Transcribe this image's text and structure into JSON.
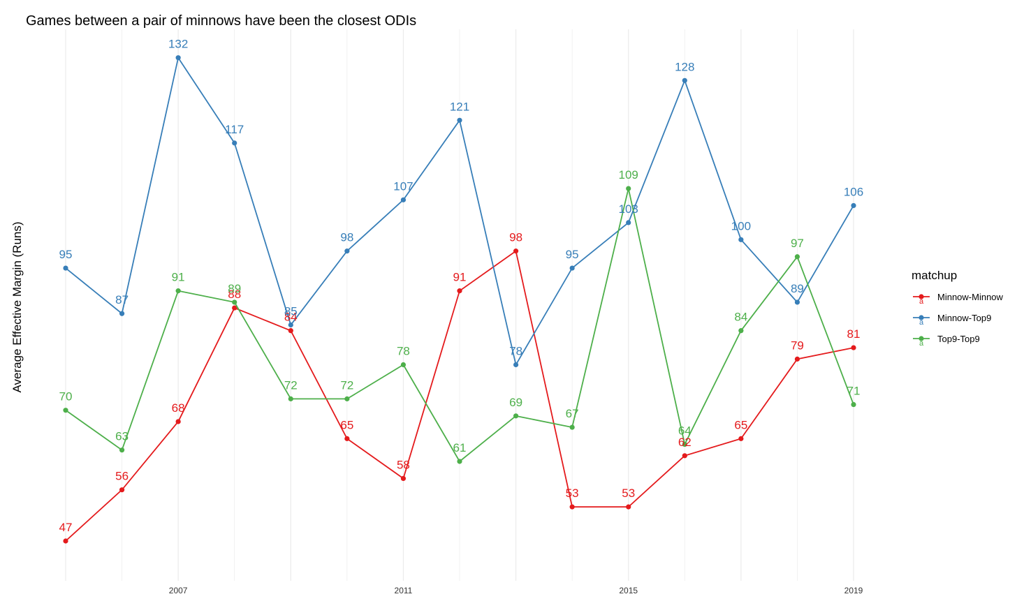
{
  "chart_data": {
    "type": "line",
    "title": "Games between a pair of minnows have been the closest ODIs",
    "ylabel": "Average Effective Margin (Runs)",
    "xlabel": "",
    "x": [
      2005,
      2006,
      2007,
      2008,
      2009,
      2010,
      2011,
      2012,
      2013,
      2014,
      2015,
      2016,
      2017,
      2018,
      2019
    ],
    "x_ticks": [
      "2007",
      "2011",
      "2015",
      "2019"
    ],
    "x_tick_values": [
      2007,
      2011,
      2015,
      2019
    ],
    "xlim": [
      2005,
      2019
    ],
    "ylim": [
      40,
      137
    ],
    "y_axis_ticks_shown": false,
    "grid": "vertical",
    "legend": {
      "title": "matchup",
      "position": "right",
      "glyph": "a"
    },
    "series": [
      {
        "name": "Minnow-Minnow",
        "color": "#e41a1c",
        "values": [
          47,
          56,
          68,
          88,
          84,
          65,
          58,
          91,
          98,
          53,
          53,
          62,
          65,
          79,
          81
        ]
      },
      {
        "name": "Minnow-Top9",
        "color": "#377eb8",
        "values": [
          95,
          87,
          132,
          117,
          85,
          98,
          107,
          121,
          78,
          95,
          103,
          128,
          100,
          89,
          106
        ]
      },
      {
        "name": "Top9-Top9",
        "color": "#4daf4a",
        "values": [
          70,
          63,
          91,
          89,
          72,
          72,
          78,
          61,
          69,
          67,
          109,
          64,
          84,
          97,
          71
        ]
      }
    ]
  }
}
